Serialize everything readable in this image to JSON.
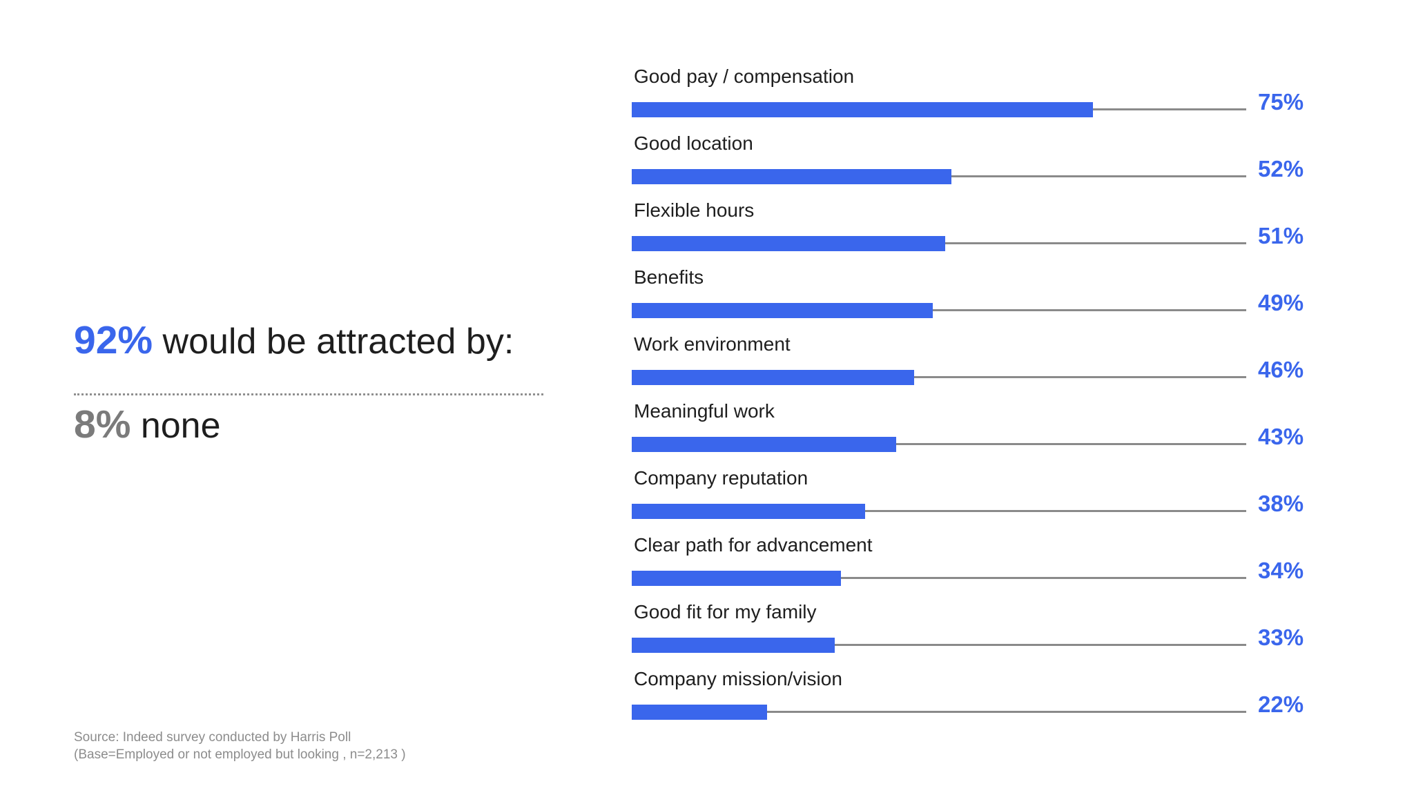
{
  "summary": {
    "highlight_value": "92%",
    "highlight_text": " would be attracted by:",
    "secondary_value": "8%",
    "secondary_text": " none"
  },
  "source": {
    "line1": "Source: Indeed survey conducted by Harris Poll",
    "line2": "(Base=Employed or not employed but looking , n=2,213 )"
  },
  "colors": {
    "accent_blue": "#3a66ec",
    "label_dark": "#1e1e1e",
    "muted_gray": "#7b7b7b",
    "track_gray": "#8a8a8a",
    "source_gray": "#8c8c8c"
  },
  "chart_data": {
    "type": "bar",
    "orientation": "horizontal",
    "unit": "percent",
    "xlim": [
      0,
      100
    ],
    "grid": false,
    "legend": false,
    "categories": [
      "Good pay / compensation",
      "Good location",
      "Flexible hours",
      "Benefits",
      "Work environment",
      "Meaningful work",
      "Company reputation",
      "Clear path for advancement",
      "Good fit for my family",
      "Company mission/vision"
    ],
    "values": [
      75,
      52,
      51,
      49,
      46,
      43,
      38,
      34,
      33,
      22
    ],
    "value_labels": [
      "75%",
      "52%",
      "51%",
      "49%",
      "46%",
      "43%",
      "38%",
      "34%",
      "33%",
      "22%"
    ],
    "bar_color": "#3a66ec",
    "track_color": "#8a8a8a"
  }
}
